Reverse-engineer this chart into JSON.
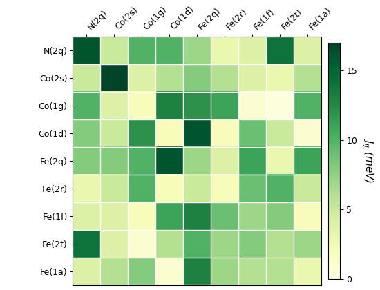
{
  "labels": [
    "N(2q)",
    "Co(2s)",
    "Co(1g)",
    "Co(1d)",
    "Fe(2q)",
    "Fe(2r)",
    "Fe(1f)",
    "Fe(2t)",
    "Fe(1a)"
  ],
  "matrix": [
    [
      16.0,
      5.0,
      10.0,
      10.0,
      7.0,
      3.0,
      4.0,
      14.0,
      4.0
    ],
    [
      5.0,
      17.0,
      4.0,
      6.0,
      8.0,
      6.0,
      4.0,
      3.0,
      6.0
    ],
    [
      10.0,
      4.0,
      2.0,
      13.0,
      12.0,
      11.0,
      1.0,
      0.5,
      10.0
    ],
    [
      8.0,
      5.0,
      12.0,
      2.0,
      16.0,
      2.0,
      9.0,
      5.0,
      1.0
    ],
    [
      8.0,
      8.0,
      10.0,
      16.0,
      7.0,
      4.0,
      11.0,
      3.0,
      11.0
    ],
    [
      3.0,
      5.0,
      10.0,
      2.0,
      5.0,
      2.0,
      9.0,
      10.0,
      5.0
    ],
    [
      4.0,
      4.0,
      2.0,
      11.0,
      13.0,
      9.0,
      7.0,
      8.0,
      2.0
    ],
    [
      14.0,
      4.0,
      1.0,
      6.0,
      10.0,
      7.0,
      8.0,
      6.0,
      7.0
    ],
    [
      4.0,
      6.0,
      8.0,
      1.0,
      13.0,
      7.0,
      6.0,
      6.0,
      3.0
    ]
  ],
  "vmin": 0,
  "vmax": 17,
  "cmap": "YlGn",
  "colorbar_label": "$J_{ij}$ (meV)",
  "colorbar_ticks": [
    0,
    5,
    10,
    15
  ],
  "figsize": [
    5.5,
    4.2
  ],
  "dpi": 100
}
